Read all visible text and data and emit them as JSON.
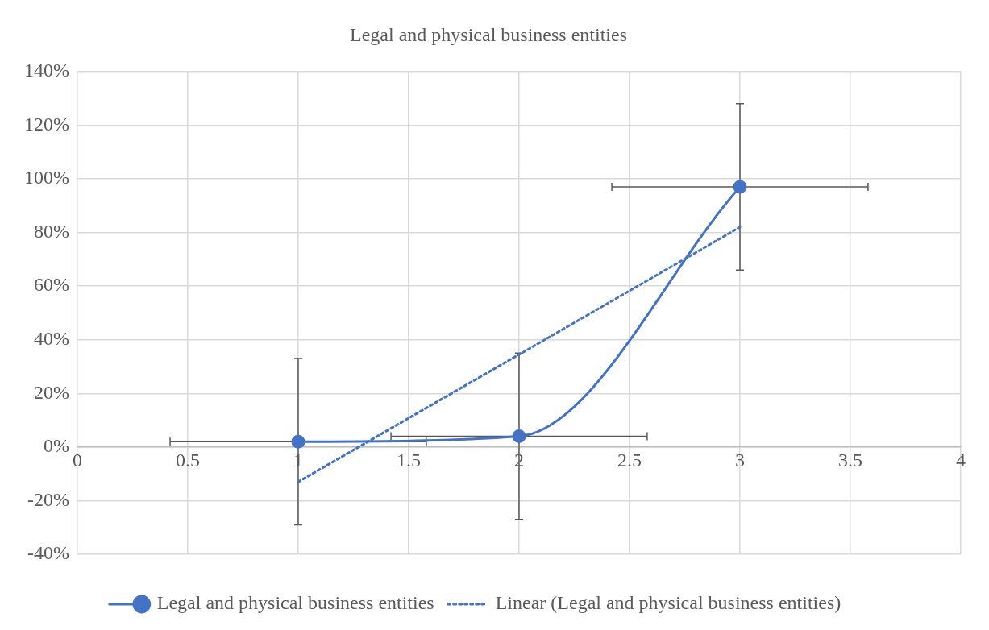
{
  "chart_data": {
    "type": "line",
    "title": "Legal and physical business entities",
    "x": [
      1,
      2,
      3
    ],
    "series": [
      {
        "name": "Legal and physical business entities",
        "color": "#4472c4",
        "values": [
          2,
          4,
          97
        ],
        "errors": [
          31,
          31,
          31
        ],
        "xerrors": [
          0.58,
          0.58,
          0.58
        ],
        "marker": "circle",
        "line_style": "solid"
      },
      {
        "name": "Linear (Legal and physical business entities)",
        "color": "#4472c4",
        "type": "line",
        "x": [
          1,
          3
        ],
        "values": [
          -13,
          82
        ],
        "marker": "none",
        "line_style": "dotted"
      }
    ],
    "xlim": [
      0,
      4
    ],
    "xticks": [
      0,
      0.5,
      1,
      1.5,
      2,
      2.5,
      3,
      3.5,
      4
    ],
    "ylim": [
      -40,
      140
    ],
    "yticks": [
      {
        "value": -40,
        "label": "-40%"
      },
      {
        "value": -20,
        "label": "-20%"
      },
      {
        "value": 0,
        "label": "0%"
      },
      {
        "value": 20,
        "label": "20%"
      },
      {
        "value": 40,
        "label": "40%"
      },
      {
        "value": 60,
        "label": "60%"
      },
      {
        "value": 80,
        "label": "80%"
      },
      {
        "value": 100,
        "label": "100%"
      },
      {
        "value": 120,
        "label": "120%"
      },
      {
        "value": 140,
        "label": "140%"
      }
    ],
    "grid": true,
    "legend": "bottom"
  }
}
